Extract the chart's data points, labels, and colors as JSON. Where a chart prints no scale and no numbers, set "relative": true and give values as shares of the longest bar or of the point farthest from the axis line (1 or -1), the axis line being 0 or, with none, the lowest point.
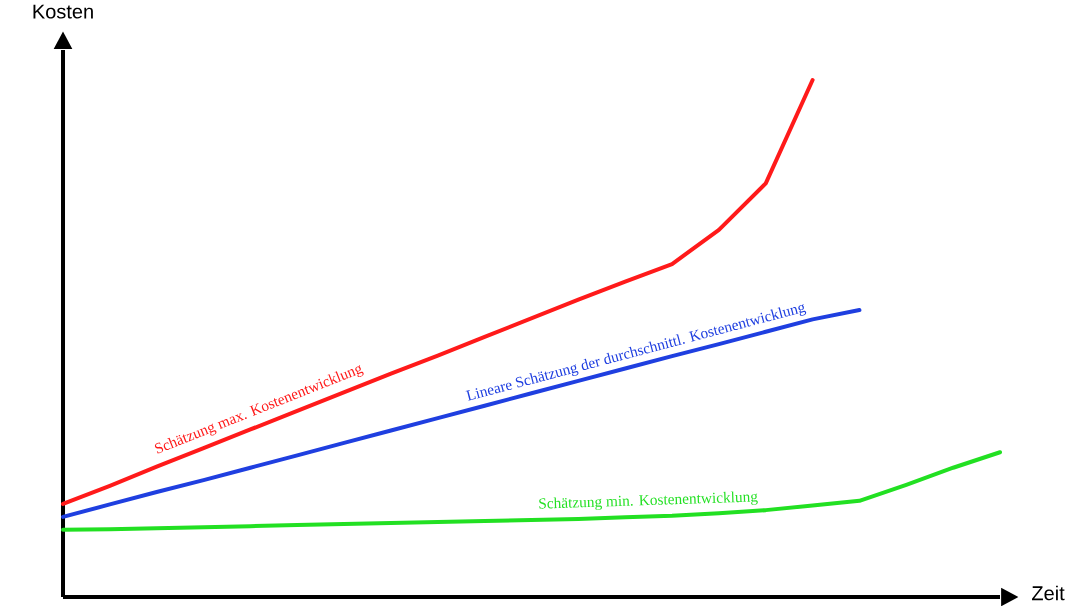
{
  "chart_data": {
    "type": "line",
    "relative": true,
    "xlabel": "Zeit",
    "ylabel": "Kosten",
    "tick_labels": false,
    "categories": [
      null,
      null,
      null,
      null,
      null,
      null,
      null,
      null,
      null,
      null,
      null,
      null,
      null,
      null,
      null,
      null,
      null,
      null,
      null,
      null,
      null
    ],
    "series": [
      {
        "name": "Schätzung max. Kostenentwicklung",
        "color": "#ff1a1a",
        "values": [
          0.18,
          0.215,
          0.252,
          0.288,
          0.324,
          0.36,
          0.396,
          0.432,
          0.467,
          0.503,
          0.539,
          0.575,
          0.61,
          0.644,
          0.71,
          0.8,
          1.0,
          null,
          null,
          null,
          null
        ]
      },
      {
        "name": "Lineare Schätzung der durchschnittl. Kostenentwicklung",
        "color": "#1f3fe0",
        "values": [
          0.155,
          0.179,
          0.203,
          0.226,
          0.25,
          0.274,
          0.298,
          0.322,
          0.346,
          0.37,
          0.394,
          0.418,
          0.442,
          0.466,
          0.489,
          0.513,
          0.537,
          0.555,
          null,
          null,
          null
        ]
      },
      {
        "name": "Schätzung min. Kostenentwicklung",
        "color": "#22e022",
        "values": [
          0.13,
          0.131,
          0.133,
          0.135,
          0.137,
          0.139,
          0.141,
          0.143,
          0.145,
          0.147,
          0.149,
          0.151,
          0.154,
          0.157,
          0.162,
          0.168,
          0.177,
          0.186,
          0.217,
          0.25,
          0.28
        ]
      }
    ]
  }
}
